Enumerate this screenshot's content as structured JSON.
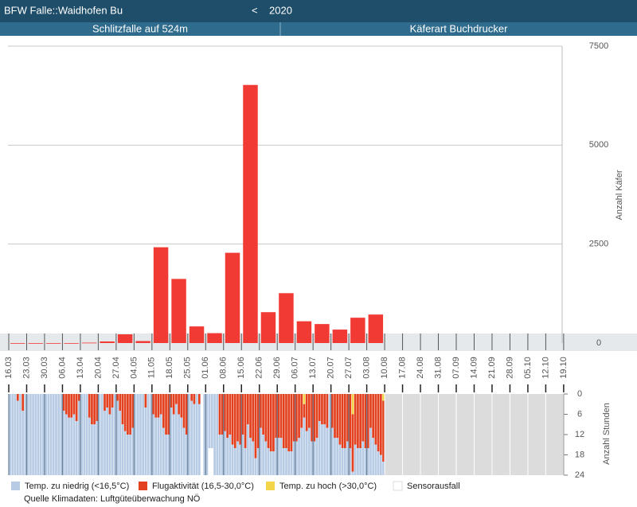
{
  "header": {
    "title": "BFW Falle::Waidhofen Bu",
    "nav": "<",
    "year": "2020",
    "tabs": [
      "Schlitzfalle auf 524m",
      "Käferart Buchdrucker"
    ]
  },
  "chart_data": [
    {
      "type": "bar",
      "ylabel": "Anzahl Käfer",
      "color": "#f23a35",
      "categories": [
        "16.03",
        "23.03",
        "30.03",
        "06.04",
        "13.04",
        "20.04",
        "27.04",
        "04.05",
        "11.05",
        "18.05",
        "25.05",
        "01.06",
        "08.06",
        "15.06",
        "22.06",
        "29.06",
        "06.07",
        "13.07",
        "20.07",
        "27.07",
        "03.08",
        "10.08",
        "17.08",
        "24.08",
        "31.08",
        "07.09",
        "14.09",
        "21.09",
        "28.09",
        "05.10",
        "12.10",
        "19.10"
      ],
      "values": [
        0,
        0,
        0,
        0,
        10,
        40,
        220,
        50,
        2420,
        1620,
        420,
        250,
        2280,
        6520,
        780,
        1260,
        550,
        480,
        340,
        640,
        720,
        null,
        null,
        null,
        null,
        null,
        null,
        null,
        null,
        null,
        null,
        null
      ],
      "ylim": [
        0,
        7500
      ],
      "yticks": [
        0,
        2500,
        5000,
        7500
      ],
      "grid": true
    },
    {
      "type": "stacked_bar",
      "ylabel": "Anzahl Stunden",
      "ylim": [
        0,
        24
      ],
      "yticks": [
        0,
        6,
        12,
        18,
        24
      ],
      "inverted": true,
      "source": "Quelle Klimadaten: Luftgüteüberwachung NÖ",
      "series": [
        {
          "name": "Temp. zu niedrig (<16,5°C)",
          "color": "#b7cbe5",
          "values": [
            24,
            24,
            24,
            22,
            24,
            19,
            24,
            24,
            24,
            24,
            24,
            24,
            24,
            24,
            24,
            24,
            24,
            24,
            24,
            24,
            24,
            19,
            18,
            17,
            17,
            18,
            16,
            22,
            24,
            24,
            24,
            17,
            15,
            15,
            16,
            24,
            24,
            19,
            20,
            18,
            20,
            24,
            22,
            19,
            15,
            13,
            12,
            12,
            14,
            24,
            24,
            24,
            24,
            20,
            24,
            24,
            18,
            17,
            17,
            18,
            14,
            12,
            12,
            20,
            18,
            21,
            18,
            17,
            14,
            12,
            24,
            22,
            21,
            24,
            21,
            0,
            24,
            24,
            16,
            16,
            24,
            24,
            12,
            12,
            13,
            11,
            12,
            9,
            8,
            10,
            9,
            12,
            8,
            15,
            11,
            10,
            5,
            8,
            14,
            12,
            10,
            8,
            7,
            7,
            11,
            11,
            11,
            8,
            8,
            7,
            7,
            10,
            10,
            11,
            14,
            17,
            13,
            14,
            10,
            10,
            11,
            16,
            15,
            15,
            14,
            24,
            14,
            11,
            11,
            9,
            8,
            8,
            10,
            8,
            1,
            9,
            8,
            8,
            10,
            8,
            8,
            14,
            11,
            9,
            7,
            6,
            4
          ]
        },
        {
          "name": "Flugaktivität (16,5-30,0°C)",
          "color": "#e2401f",
          "values": [
            0,
            0,
            0,
            2,
            0,
            5,
            0,
            0,
            0,
            0,
            0,
            0,
            0,
            0,
            0,
            0,
            0,
            0,
            0,
            0,
            0,
            5,
            6,
            7,
            7,
            6,
            8,
            2,
            0,
            0,
            0,
            7,
            9,
            9,
            8,
            0,
            0,
            5,
            4,
            6,
            4,
            0,
            2,
            5,
            9,
            11,
            12,
            12,
            10,
            0,
            0,
            0,
            0,
            4,
            0,
            0,
            6,
            7,
            7,
            6,
            10,
            12,
            12,
            4,
            6,
            3,
            6,
            7,
            10,
            12,
            0,
            2,
            3,
            0,
            3,
            0,
            0,
            0,
            0,
            0,
            0,
            0,
            12,
            12,
            11,
            13,
            12,
            15,
            16,
            14,
            15,
            12,
            16,
            9,
            13,
            14,
            19,
            16,
            10,
            12,
            14,
            16,
            17,
            17,
            13,
            13,
            13,
            16,
            16,
            17,
            17,
            14,
            14,
            13,
            10,
            4,
            11,
            10,
            14,
            14,
            13,
            8,
            9,
            9,
            10,
            0,
            10,
            13,
            13,
            15,
            16,
            16,
            14,
            16,
            17,
            15,
            16,
            16,
            14,
            16,
            16,
            10,
            13,
            15,
            17,
            18,
            18
          ]
        },
        {
          "name": "Temp. zu hoch (>30,0°C)",
          "color": "#f2d548",
          "values": [
            0,
            0,
            0,
            0,
            0,
            0,
            0,
            0,
            0,
            0,
            0,
            0,
            0,
            0,
            0,
            0,
            0,
            0,
            0,
            0,
            0,
            0,
            0,
            0,
            0,
            0,
            0,
            0,
            0,
            0,
            0,
            0,
            0,
            0,
            0,
            0,
            0,
            0,
            0,
            0,
            0,
            0,
            0,
            0,
            0,
            0,
            0,
            0,
            0,
            0,
            0,
            0,
            0,
            0,
            0,
            0,
            0,
            0,
            0,
            0,
            0,
            0,
            0,
            0,
            0,
            0,
            0,
            0,
            0,
            0,
            0,
            0,
            0,
            0,
            0,
            0,
            0,
            0,
            0,
            0,
            0,
            0,
            0,
            0,
            0,
            0,
            0,
            0,
            0,
            0,
            0,
            0,
            0,
            0,
            0,
            0,
            0,
            0,
            0,
            0,
            0,
            0,
            0,
            0,
            0,
            0,
            0,
            0,
            0,
            0,
            0,
            0,
            0,
            0,
            0,
            3,
            0,
            0,
            0,
            0,
            0,
            0,
            0,
            0,
            0,
            0,
            0,
            0,
            0,
            0,
            0,
            0,
            0,
            0,
            6,
            0,
            0,
            0,
            0,
            0,
            0,
            0,
            0,
            0,
            0,
            0,
            2
          ]
        },
        {
          "name": "Sensorausfall",
          "color": "#ffffff",
          "values": [
            0,
            0,
            0,
            0,
            0,
            0,
            0,
            0,
            0,
            0,
            0,
            0,
            0,
            0,
            0,
            0,
            0,
            0,
            0,
            0,
            0,
            0,
            0,
            0,
            0,
            0,
            0,
            0,
            0,
            0,
            0,
            0,
            0,
            0,
            0,
            0,
            0,
            0,
            0,
            0,
            0,
            0,
            0,
            0,
            0,
            0,
            0,
            0,
            0,
            0,
            0,
            0,
            0,
            0,
            0,
            0,
            0,
            0,
            0,
            0,
            0,
            0,
            0,
            0,
            0,
            0,
            0,
            0,
            0,
            0,
            0,
            0,
            0,
            0,
            0,
            24,
            0,
            0,
            8,
            8,
            0,
            0,
            0,
            0,
            0,
            0,
            0,
            0,
            0,
            0,
            0,
            0,
            0,
            0,
            0,
            0,
            0,
            0,
            0,
            0,
            0,
            0,
            0,
            0,
            0,
            0,
            0,
            0,
            0,
            0,
            0,
            0,
            0,
            0,
            0,
            0,
            0,
            0,
            0,
            0,
            0,
            0,
            0,
            0,
            0,
            0,
            0,
            0,
            0,
            0,
            0,
            0,
            0,
            0,
            0,
            0,
            0,
            0,
            0,
            0,
            0,
            0,
            0,
            0,
            0,
            0,
            0
          ]
        }
      ]
    }
  ]
}
